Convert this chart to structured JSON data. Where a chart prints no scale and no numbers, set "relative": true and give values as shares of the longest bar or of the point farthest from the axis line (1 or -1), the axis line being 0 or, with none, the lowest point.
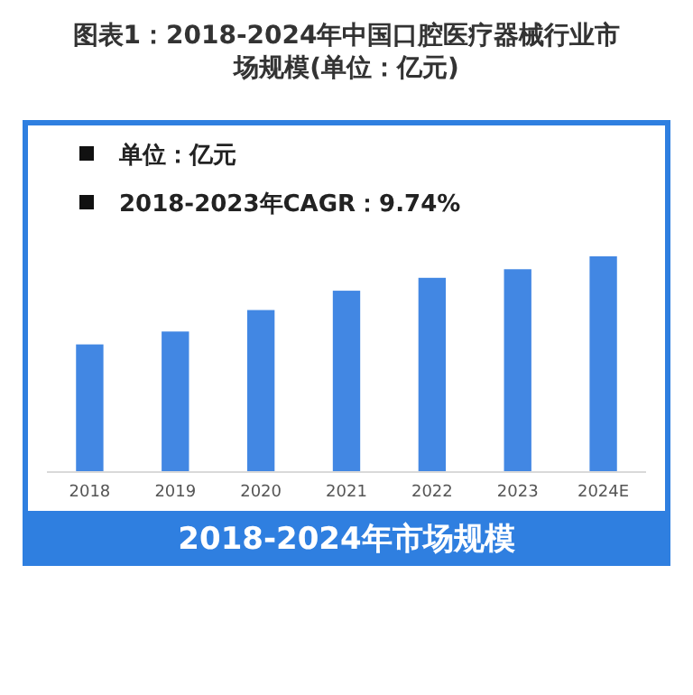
{
  "chart_data": {
    "type": "bar",
    "title": "图表1：2018-2024年中国口腔医疗器械行业市场规模(单位：亿元)",
    "annotations": [
      "单位：亿元",
      "2018-2023年CAGR：9.74%"
    ],
    "xlabel": "2018-2024年市场规模",
    "categories": [
      "2018",
      "2019",
      "2020",
      "2021",
      "2022",
      "2023",
      "2024E"
    ],
    "values": [
      0.59,
      0.65,
      0.75,
      0.84,
      0.9,
      0.94,
      1
    ],
    "color": "#4287e3",
    "relative": true
  }
}
